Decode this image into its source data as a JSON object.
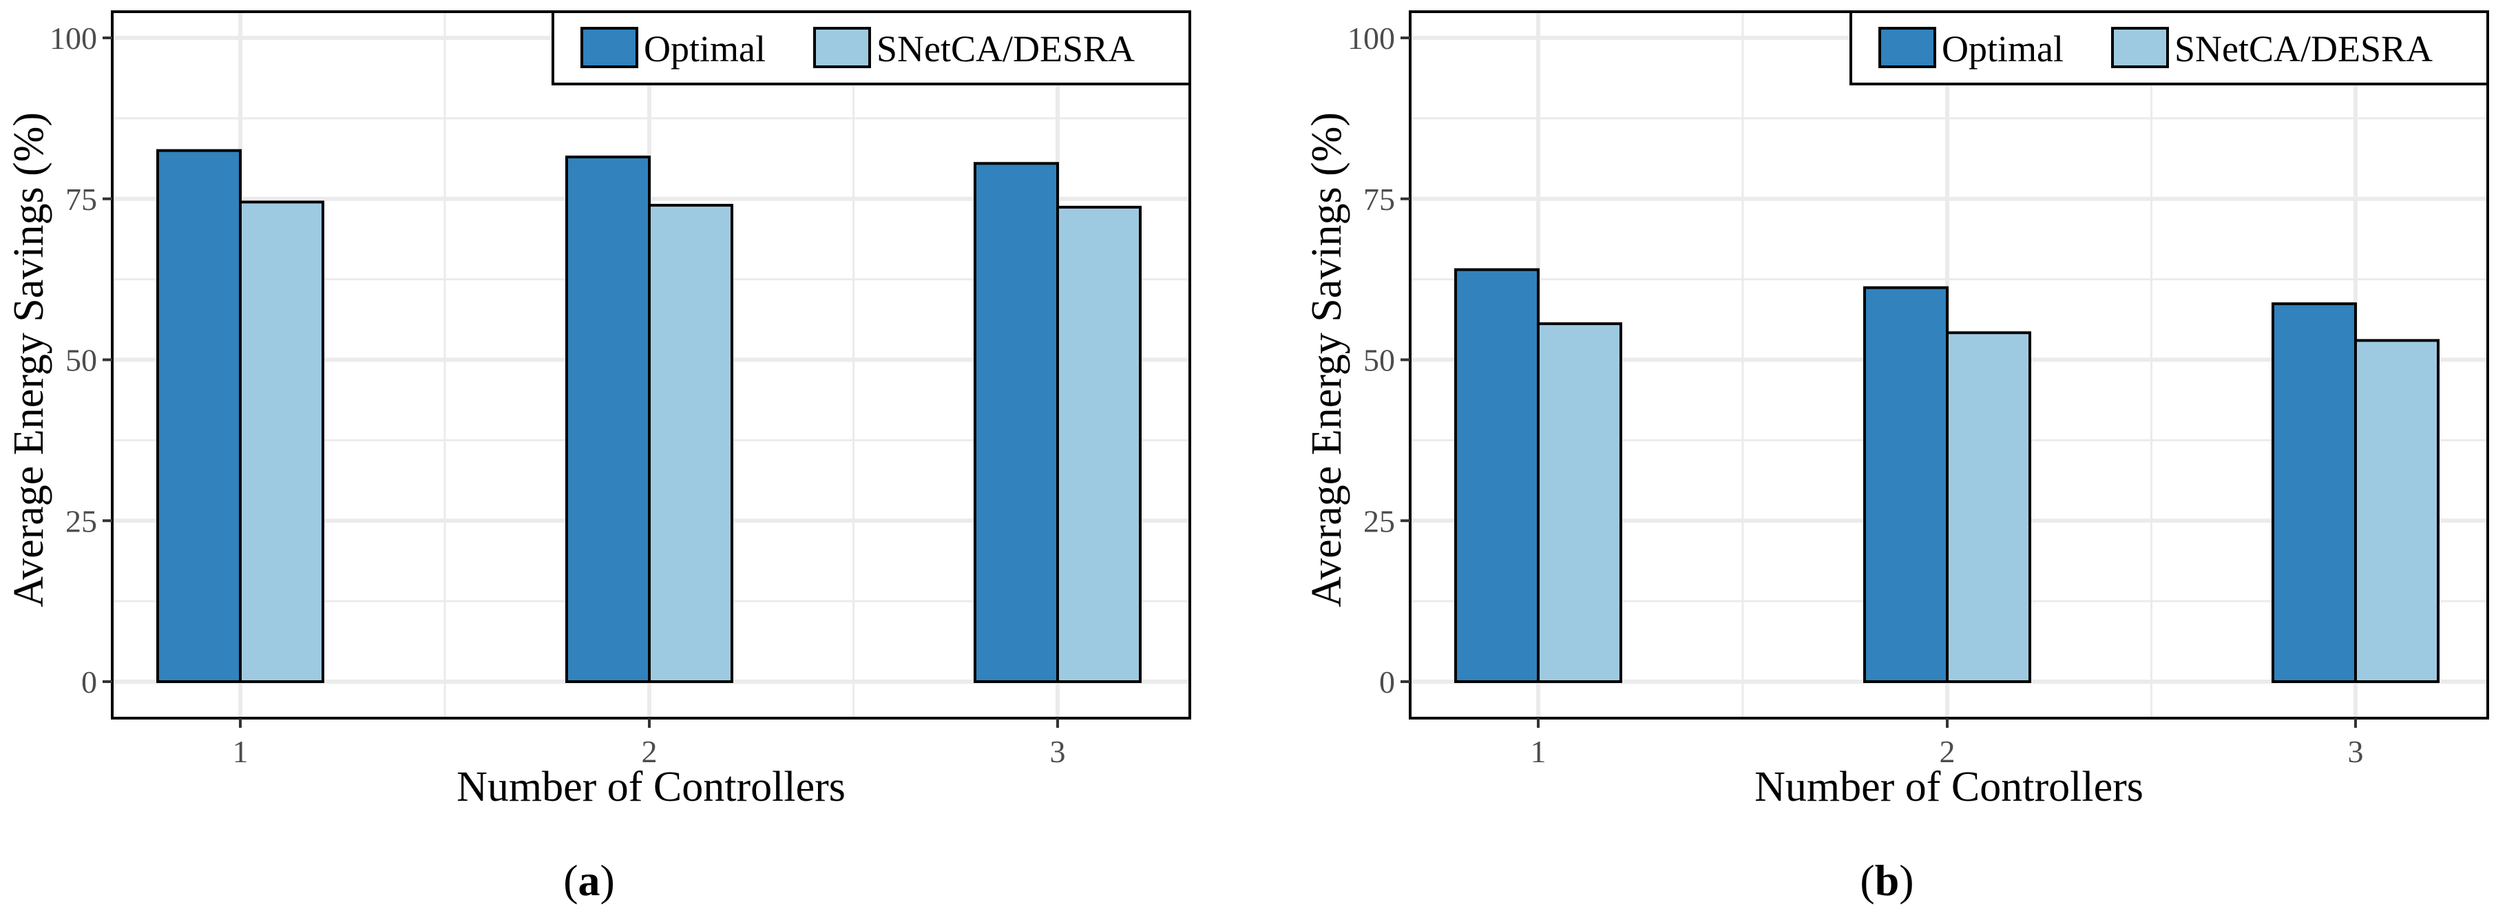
{
  "colors": {
    "optimal": "#3182bd",
    "snetca_desra": "#9ecae1",
    "grid": "#ebebeb",
    "frame": "#000000",
    "tick_text": "#4d4d4d"
  },
  "chart_data": [
    {
      "type": "bar",
      "panel_label": "a",
      "categories": [
        "1",
        "2",
        "3"
      ],
      "series": [
        {
          "name": "Optimal",
          "values": [
            82.5,
            81.5,
            80.5
          ]
        },
        {
          "name": "SNetCA/DESRA",
          "values": [
            74.5,
            74.0,
            73.7
          ]
        }
      ],
      "xlabel": "Number of Controllers",
      "ylabel": "Average Energy Savings (%)",
      "ylim": [
        0,
        100
      ],
      "yticks": [
        0,
        25,
        50,
        75,
        100
      ],
      "ytick_labels": [
        "0",
        "25",
        "50",
        "75",
        "100"
      ],
      "grid": true,
      "legend_position": "top-right"
    },
    {
      "type": "bar",
      "panel_label": "b",
      "categories": [
        "1",
        "2",
        "3"
      ],
      "series": [
        {
          "name": "Optimal",
          "values": [
            64.0,
            61.2,
            58.7
          ]
        },
        {
          "name": "SNetCA/DESRA",
          "values": [
            55.6,
            54.2,
            53.0
          ]
        }
      ],
      "xlabel": "Number of Controllers",
      "ylabel": "Average Energy Savings (%)",
      "ylim": [
        0,
        100
      ],
      "yticks": [
        0,
        25,
        50,
        75,
        100
      ],
      "ytick_labels": [
        "0",
        "25",
        "50",
        "75",
        "100"
      ],
      "grid": true,
      "legend_position": "top-right"
    }
  ]
}
